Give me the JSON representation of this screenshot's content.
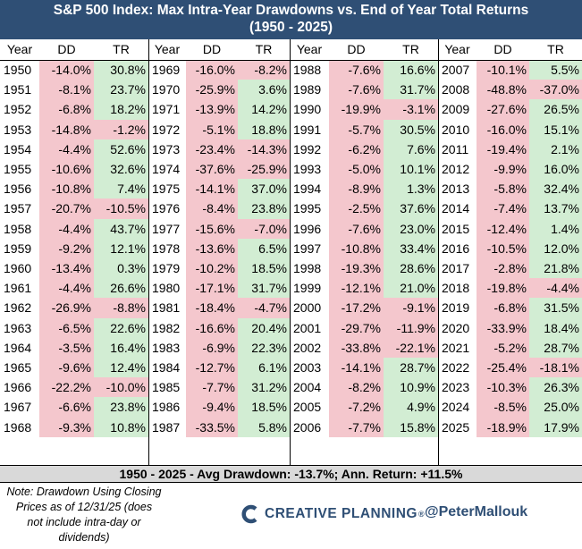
{
  "title": "S&P 500 Index: Max Intra-Year Drawdowns vs. End of Year Total Returns",
  "subtitle": "(1950 - 2025)",
  "column_headers": {
    "year": "Year",
    "dd": "DD",
    "tr": "TR"
  },
  "chart_data": {
    "type": "table",
    "columns": [
      "Year",
      "DD",
      "TR"
    ],
    "rows": [
      [
        "1950",
        "-14.0%",
        "30.8%"
      ],
      [
        "1951",
        "-8.1%",
        "23.7%"
      ],
      [
        "1952",
        "-6.8%",
        "18.2%"
      ],
      [
        "1953",
        "-14.8%",
        "-1.2%"
      ],
      [
        "1954",
        "-4.4%",
        "52.6%"
      ],
      [
        "1955",
        "-10.6%",
        "32.6%"
      ],
      [
        "1956",
        "-10.8%",
        "7.4%"
      ],
      [
        "1957",
        "-20.7%",
        "-10.5%"
      ],
      [
        "1958",
        "-4.4%",
        "43.7%"
      ],
      [
        "1959",
        "-9.2%",
        "12.1%"
      ],
      [
        "1960",
        "-13.4%",
        "0.3%"
      ],
      [
        "1961",
        "-4.4%",
        "26.6%"
      ],
      [
        "1962",
        "-26.9%",
        "-8.8%"
      ],
      [
        "1963",
        "-6.5%",
        "22.6%"
      ],
      [
        "1964",
        "-3.5%",
        "16.4%"
      ],
      [
        "1965",
        "-9.6%",
        "12.4%"
      ],
      [
        "1966",
        "-22.2%",
        "-10.0%"
      ],
      [
        "1967",
        "-6.6%",
        "23.8%"
      ],
      [
        "1968",
        "-9.3%",
        "10.8%"
      ],
      [
        "1969",
        "-16.0%",
        "-8.2%"
      ],
      [
        "1970",
        "-25.9%",
        "3.6%"
      ],
      [
        "1971",
        "-13.9%",
        "14.2%"
      ],
      [
        "1972",
        "-5.1%",
        "18.8%"
      ],
      [
        "1973",
        "-23.4%",
        "-14.3%"
      ],
      [
        "1974",
        "-37.6%",
        "-25.9%"
      ],
      [
        "1975",
        "-14.1%",
        "37.0%"
      ],
      [
        "1976",
        "-8.4%",
        "23.8%"
      ],
      [
        "1977",
        "-15.6%",
        "-7.0%"
      ],
      [
        "1978",
        "-13.6%",
        "6.5%"
      ],
      [
        "1979",
        "-10.2%",
        "18.5%"
      ],
      [
        "1980",
        "-17.1%",
        "31.7%"
      ],
      [
        "1981",
        "-18.4%",
        "-4.7%"
      ],
      [
        "1982",
        "-16.6%",
        "20.4%"
      ],
      [
        "1983",
        "-6.9%",
        "22.3%"
      ],
      [
        "1984",
        "-12.7%",
        "6.1%"
      ],
      [
        "1985",
        "-7.7%",
        "31.2%"
      ],
      [
        "1986",
        "-9.4%",
        "18.5%"
      ],
      [
        "1987",
        "-33.5%",
        "5.8%"
      ],
      [
        "1988",
        "-7.6%",
        "16.6%"
      ],
      [
        "1989",
        "-7.6%",
        "31.7%"
      ],
      [
        "1990",
        "-19.9%",
        "-3.1%"
      ],
      [
        "1991",
        "-5.7%",
        "30.5%"
      ],
      [
        "1992",
        "-6.2%",
        "7.6%"
      ],
      [
        "1993",
        "-5.0%",
        "10.1%"
      ],
      [
        "1994",
        "-8.9%",
        "1.3%"
      ],
      [
        "1995",
        "-2.5%",
        "37.6%"
      ],
      [
        "1996",
        "-7.6%",
        "23.0%"
      ],
      [
        "1997",
        "-10.8%",
        "33.4%"
      ],
      [
        "1998",
        "-19.3%",
        "28.6%"
      ],
      [
        "1999",
        "-12.1%",
        "21.0%"
      ],
      [
        "2000",
        "-17.2%",
        "-9.1%"
      ],
      [
        "2001",
        "-29.7%",
        "-11.9%"
      ],
      [
        "2002",
        "-33.8%",
        "-22.1%"
      ],
      [
        "2003",
        "-14.1%",
        "28.7%"
      ],
      [
        "2004",
        "-8.2%",
        "10.9%"
      ],
      [
        "2005",
        "-7.2%",
        "4.9%"
      ],
      [
        "2006",
        "-7.7%",
        "15.8%"
      ],
      [
        "2007",
        "-10.1%",
        "5.5%"
      ],
      [
        "2008",
        "-48.8%",
        "-37.0%"
      ],
      [
        "2009",
        "-27.6%",
        "26.5%"
      ],
      [
        "2010",
        "-16.0%",
        "15.1%"
      ],
      [
        "2011",
        "-19.4%",
        "2.1%"
      ],
      [
        "2012",
        "-9.9%",
        "16.0%"
      ],
      [
        "2013",
        "-5.8%",
        "32.4%"
      ],
      [
        "2014",
        "-7.4%",
        "13.7%"
      ],
      [
        "2015",
        "-12.4%",
        "1.4%"
      ],
      [
        "2016",
        "-10.5%",
        "12.0%"
      ],
      [
        "2017",
        "-2.8%",
        "21.8%"
      ],
      [
        "2018",
        "-19.8%",
        "-4.4%"
      ],
      [
        "2019",
        "-6.8%",
        "31.5%"
      ],
      [
        "2020",
        "-33.9%",
        "18.4%"
      ],
      [
        "2021",
        "-5.2%",
        "28.7%"
      ],
      [
        "2022",
        "-25.4%",
        "-18.1%"
      ],
      [
        "2023",
        "-10.3%",
        "26.3%"
      ],
      [
        "2024",
        "-8.5%",
        "25.0%"
      ],
      [
        "2025",
        "-18.9%",
        "17.9%"
      ]
    ]
  },
  "colors": {
    "header_bg": "#2f4f75",
    "negative": "#f4c7cd",
    "positive": "#d2edd3",
    "footer_bg": "#d9d9d9"
  },
  "footer": "1950 - 2025 - Avg Drawdown: -13.7%; Ann. Return: +11.5%",
  "note": [
    "Note: Drawdown Using Closing",
    "Prices as of 12/31/25 (does",
    "not include intra-day or",
    "dividends)"
  ],
  "brand": {
    "name": "CREATIVE PLANNING",
    "mark": "®",
    "icon": "creative-planning-logo-icon"
  },
  "handle": "@PeterMallouk"
}
